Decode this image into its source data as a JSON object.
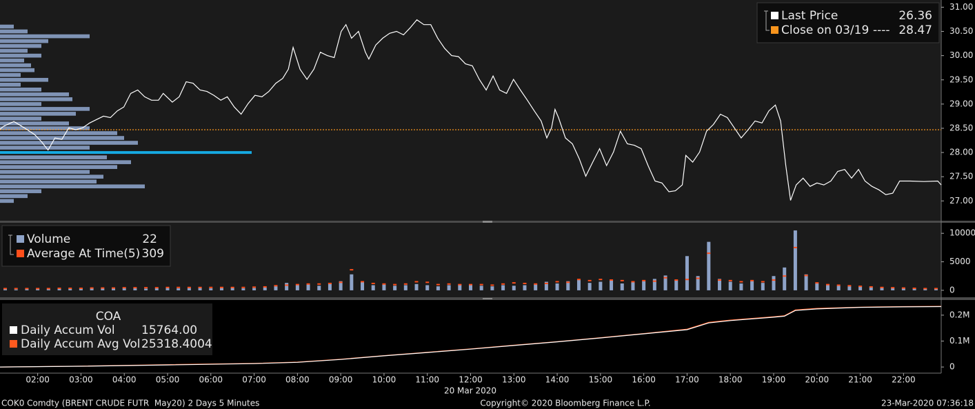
{
  "footer": {
    "description": "COK0 Comdty (BRENT CRUDE FUTR  May20) 2 Days 5 Minutes",
    "date": "20 Mar 2020",
    "copyright": "Copyright© 2020 Bloomberg Finance L.P.",
    "timestamp": "23-Mar-2020 07:36:18"
  },
  "chart_data": [
    {
      "type": "line",
      "xlim": [
        1.13,
        22.87
      ],
      "ylim": [
        26.62,
        31.12
      ],
      "yticks": [
        {
          "value": 27,
          "label": "27.00"
        },
        {
          "value": 27.5,
          "label": "27.50"
        },
        {
          "value": 28,
          "label": "28.00"
        },
        {
          "value": 28.5,
          "label": "28.50"
        },
        {
          "value": 29,
          "label": "29.00"
        },
        {
          "value": 29.5,
          "label": "29.50"
        },
        {
          "value": 30,
          "label": "30.00"
        },
        {
          "value": 30.5,
          "label": "30.50"
        },
        {
          "value": 31,
          "label": "31.00"
        }
      ],
      "x": [
        1.13,
        1.21,
        1.45,
        1.69,
        1.93,
        2.09,
        2.24,
        2.4,
        2.56,
        2.72,
        2.88,
        3.04,
        3.2,
        3.36,
        3.52,
        3.68,
        3.84,
        3.99,
        4.15,
        4.31,
        4.47,
        4.63,
        4.79,
        4.9,
        5.11,
        5.27,
        5.43,
        5.59,
        5.75,
        5.91,
        6.07,
        6.23,
        6.38,
        6.54,
        6.7,
        6.86,
        7.02,
        7.18,
        7.34,
        7.5,
        7.66,
        7.79,
        7.9,
        8.06,
        8.22,
        8.38,
        8.53,
        8.69,
        8.85,
        9.01,
        9.12,
        9.25,
        9.41,
        9.57,
        9.65,
        9.81,
        9.97,
        10.13,
        10.29,
        10.45,
        10.6,
        10.76,
        10.92,
        11.08,
        11.24,
        11.4,
        11.56,
        11.72,
        11.88,
        12.04,
        12.2,
        12.36,
        12.52,
        12.67,
        12.83,
        12.99,
        13.15,
        13.31,
        13.47,
        13.63,
        13.76,
        13.87,
        13.95,
        14.03,
        14.19,
        14.35,
        14.51,
        14.66,
        14.82,
        14.98,
        15.14,
        15.3,
        15.46,
        15.62,
        15.78,
        15.94,
        16.1,
        16.26,
        16.42,
        16.58,
        16.73,
        16.89,
        16.97,
        17.13,
        17.29,
        17.45,
        17.61,
        17.77,
        17.93,
        18.09,
        18.25,
        18.41,
        18.57,
        18.73,
        18.89,
        19.04,
        19.16,
        19.28,
        19.39,
        19.52,
        19.68,
        19.84,
        20.0,
        20.16,
        20.32,
        20.48,
        20.64,
        20.8,
        20.96,
        21.11,
        21.27,
        21.43,
        21.59,
        21.75,
        21.91,
        22.15,
        22.47,
        22.79,
        22.87
      ],
      "series": [
        {
          "name": "Last Price",
          "color": "#ffffff",
          "last_value": 26.36,
          "values": [
            28.48,
            28.54,
            28.64,
            28.51,
            28.37,
            28.22,
            28.05,
            28.3,
            28.27,
            28.51,
            28.47,
            28.51,
            28.61,
            28.68,
            28.75,
            28.72,
            28.86,
            28.94,
            29.22,
            29.29,
            29.15,
            29.08,
            29.08,
            29.22,
            29.04,
            29.15,
            29.46,
            29.43,
            29.29,
            29.26,
            29.18,
            29.08,
            29.15,
            28.94,
            28.79,
            29.01,
            29.18,
            29.15,
            29.26,
            29.43,
            29.53,
            29.72,
            30.17,
            29.72,
            29.51,
            29.72,
            30.07,
            30.0,
            29.96,
            30.5,
            30.64,
            30.36,
            30.5,
            30.07,
            29.93,
            30.22,
            30.36,
            30.46,
            30.5,
            30.43,
            30.57,
            30.74,
            30.64,
            30.64,
            30.36,
            30.15,
            30.0,
            29.98,
            29.83,
            29.79,
            29.51,
            29.29,
            29.58,
            29.29,
            29.22,
            29.51,
            29.29,
            29.08,
            28.86,
            28.65,
            28.3,
            28.51,
            28.89,
            28.72,
            28.3,
            28.18,
            27.87,
            27.51,
            27.8,
            28.08,
            27.73,
            28.01,
            28.44,
            28.18,
            28.15,
            28.08,
            27.73,
            27.41,
            27.37,
            27.19,
            27.21,
            27.33,
            27.94,
            27.8,
            28.01,
            28.44,
            28.58,
            28.79,
            28.72,
            28.51,
            28.3,
            28.47,
            28.65,
            28.61,
            28.86,
            28.98,
            28.65,
            27.73,
            27.01,
            27.33,
            27.47,
            27.3,
            27.37,
            27.33,
            27.41,
            27.61,
            27.65,
            27.47,
            27.65,
            27.41,
            27.3,
            27.23,
            27.13,
            27.16,
            27.41,
            27.41,
            27.4,
            27.41,
            27.33
          ]
        }
      ],
      "reference_line": {
        "name": "Close on 03/19",
        "value": 28.47,
        "color": "#f7941d",
        "dash_label": "----"
      },
      "volume_profile": {
        "color": "#7f93b5",
        "highlight_color": "#16a9e1",
        "xlim": [
          0,
          4000
        ],
        "prices": [
          30.6,
          30.5,
          30.4,
          30.3,
          30.2,
          30.1,
          30.0,
          29.9,
          29.8,
          29.7,
          29.6,
          29.5,
          29.4,
          29.3,
          29.2,
          29.1,
          29.0,
          28.9,
          28.8,
          28.7,
          28.6,
          28.5,
          28.4,
          28.3,
          28.2,
          28.1,
          28.0,
          27.9,
          27.8,
          27.7,
          27.6,
          27.5,
          27.4,
          27.3,
          27.2,
          27.1,
          27.0
        ],
        "values": [
          200,
          400,
          1300,
          700,
          600,
          400,
          600,
          350,
          450,
          500,
          300,
          700,
          300,
          600,
          1000,
          1050,
          600,
          1300,
          1100,
          600,
          1000,
          1300,
          1700,
          1800,
          2000,
          1300,
          3650,
          1550,
          1900,
          1700,
          1300,
          1500,
          1400,
          2100,
          600,
          400,
          200
        ]
      }
    },
    {
      "type": "bar",
      "xlim": [
        1.13,
        22.87
      ],
      "ylim": [
        -1100,
        11600
      ],
      "yticks": [
        0,
        5000,
        10000
      ],
      "x": [
        1.25,
        1.5,
        1.75,
        2,
        2.25,
        2.5,
        2.75,
        3,
        3.25,
        3.5,
        3.75,
        4,
        4.25,
        4.5,
        4.75,
        5,
        5.25,
        5.5,
        5.75,
        6,
        6.25,
        6.5,
        6.75,
        7,
        7.25,
        7.5,
        7.75,
        8,
        8.25,
        8.5,
        8.75,
        9,
        9.25,
        9.5,
        9.75,
        10,
        10.25,
        10.5,
        10.75,
        11,
        11.25,
        11.5,
        11.75,
        12,
        12.25,
        12.5,
        12.75,
        13,
        13.25,
        13.5,
        13.75,
        14,
        14.25,
        14.5,
        14.75,
        15,
        15.25,
        15.5,
        15.75,
        16,
        16.25,
        16.5,
        16.75,
        17,
        17.25,
        17.5,
        17.75,
        18,
        18.25,
        18.5,
        18.75,
        19,
        19.25,
        19.5,
        19.75,
        20,
        20.25,
        20.5,
        20.75,
        21,
        21.25,
        21.5,
        21.75,
        22,
        22.25,
        22.5,
        22.75
      ],
      "series": [
        {
          "name": "Volume",
          "color": "#8ea3c8",
          "last_value": 22,
          "values": [
            200,
            150,
            300,
            250,
            200,
            300,
            250,
            350,
            400,
            300,
            350,
            400,
            350,
            300,
            400,
            450,
            350,
            400,
            500,
            350,
            400,
            450,
            350,
            400,
            500,
            700,
            1300,
            900,
            1000,
            800,
            1300,
            1600,
            2800,
            1400,
            900,
            1000,
            800,
            900,
            1100,
            900,
            700,
            900,
            1000,
            900,
            800,
            700,
            900,
            800,
            900,
            1000,
            1500,
            1200,
            1600,
            1800,
            1300,
            1500,
            1700,
            1200,
            1400,
            1600,
            2000,
            2600,
            1800,
            6000,
            2500,
            8500,
            2000,
            1500,
            1200,
            1600,
            1300,
            2500,
            4000,
            10500,
            2800,
            1200,
            900,
            800,
            700,
            700,
            600,
            500,
            400,
            350,
            300,
            250,
            300
          ]
        },
        {
          "name": "Average At Time(5)",
          "color": "#ff4e1a",
          "last_value": 309,
          "values": [
            300,
            300,
            300,
            300,
            300,
            350,
            350,
            350,
            400,
            400,
            400,
            450,
            450,
            450,
            450,
            500,
            500,
            500,
            500,
            500,
            500,
            500,
            500,
            550,
            600,
            800,
            900,
            1000,
            1100,
            1100,
            1200,
            1400,
            3600,
            1500,
            1200,
            1100,
            1000,
            1100,
            1500,
            1400,
            1000,
            1100,
            1000,
            1000,
            1000,
            900,
            1100,
            1300,
            1200,
            1100,
            1200,
            1500,
            1400,
            1900,
            1700,
            1900,
            1800,
            1700,
            1500,
            1700,
            1600,
            2200,
            1800,
            1900,
            2100,
            6500,
            1800,
            1700,
            1500,
            1700,
            1500,
            1800,
            2500,
            7500,
            2600,
            1300,
            1000,
            900,
            800,
            700,
            600,
            500,
            450,
            400,
            350,
            300,
            300
          ]
        }
      ]
    },
    {
      "type": "line",
      "title": "COA",
      "xlim": [
        1.13,
        22.87
      ],
      "ylim": [
        -21000,
        253000
      ],
      "yticks": [
        0,
        {
          "value": 100000,
          "label": "0.1M"
        },
        {
          "value": 200000,
          "label": "0.2M"
        }
      ],
      "xticks": [
        {
          "value": 2,
          "label": "02:00"
        },
        {
          "value": 3,
          "label": "03:00"
        },
        {
          "value": 4,
          "label": "04:00"
        },
        {
          "value": 5,
          "label": "05:00"
        },
        {
          "value": 6,
          "label": "06:00"
        },
        {
          "value": 7,
          "label": "07:00"
        },
        {
          "value": 8,
          "label": "08:00"
        },
        {
          "value": 9,
          "label": "09:00"
        },
        {
          "value": 10,
          "label": "10:00"
        },
        {
          "value": 11,
          "label": "11:00"
        },
        {
          "value": 12,
          "label": "12:00"
        },
        {
          "value": 13,
          "label": "13:00"
        },
        {
          "value": 14,
          "label": "14:00"
        },
        {
          "value": 15,
          "label": "15:00"
        },
        {
          "value": 16,
          "label": "16:00"
        },
        {
          "value": 17,
          "label": "17:00"
        },
        {
          "value": 18,
          "label": "18:00"
        },
        {
          "value": 19,
          "label": "19:00"
        },
        {
          "value": 20,
          "label": "20:00"
        },
        {
          "value": 21,
          "label": "21:00"
        },
        {
          "value": 22,
          "label": "22:00"
        }
      ],
      "x": [
        1.13,
        3,
        5,
        7,
        8,
        9,
        10,
        11,
        12,
        13,
        14,
        15,
        16,
        17,
        17.5,
        18,
        19,
        19.25,
        19.5,
        20,
        21,
        22,
        22.87
      ],
      "series": [
        {
          "name": "Daily Accum Vol",
          "color": "#ffffff",
          "last_value": {
            "value": 15764,
            "label": "15764.00"
          },
          "values": [
            0,
            3000,
            8000,
            13000,
            18000,
            29000,
            43000,
            56000,
            69000,
            83000,
            97000,
            112000,
            128000,
            144000,
            170000,
            179000,
            192000,
            196000,
            218000,
            224000,
            230000,
            232000,
            233000
          ]
        },
        {
          "name": "Daily Accum Avg Vol",
          "color": "#ff5a1f",
          "last_value": {
            "value": 25318.4004,
            "label": "25318.4004"
          },
          "values": [
            0,
            3500,
            9000,
            14000,
            19000,
            30000,
            44000,
            57000,
            70000,
            84000,
            98000,
            113000,
            129000,
            146000,
            172000,
            181000,
            194000,
            198000,
            220000,
            226000,
            231000,
            233000,
            234000
          ]
        }
      ]
    }
  ]
}
